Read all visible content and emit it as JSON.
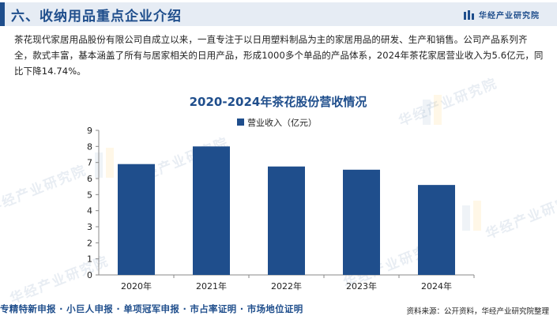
{
  "header": {
    "title": "六、收纳用品重点企业介绍",
    "brand": "华经产业研究院"
  },
  "intro": "茶花现代家居用品股份有限公司自成立以来，一直专注于以日用塑料制品为主的家居用品的研发、生产和销售。公司产品系列齐全，款式丰富，基本涵盖了所有与居家相关的日用产品，形成1000多个单品的产品体系，2024年茶花家居营业收入为5.6亿元，同比下降14.74%。",
  "watermark_text": "华经产业研究院",
  "chart_data": {
    "type": "bar",
    "title": "2020-2024年茶花股份营收情况",
    "categories": [
      "2020年",
      "2021年",
      "2022年",
      "2023年",
      "2024年"
    ],
    "series": [
      {
        "name": "营业收入（亿元）",
        "values": [
          6.9,
          8.0,
          6.75,
          6.55,
          5.6
        ],
        "color": "#1f4e8c"
      }
    ],
    "ylim": [
      0,
      9
    ],
    "yticks": [
      0,
      1,
      2,
      3,
      4,
      5,
      6,
      7,
      8,
      9
    ],
    "legend_position": "top-center",
    "grid": false
  },
  "footer": {
    "left": "专精特新申报 · 小巨人申报 · 单项冠军申报 · 市占率证明 · 市场地位证明",
    "right": "资料来源：公开资料，华经产业研究院整理"
  },
  "colors": {
    "accent": "#1f4e8c",
    "header_bg": "#e6ecf4"
  }
}
